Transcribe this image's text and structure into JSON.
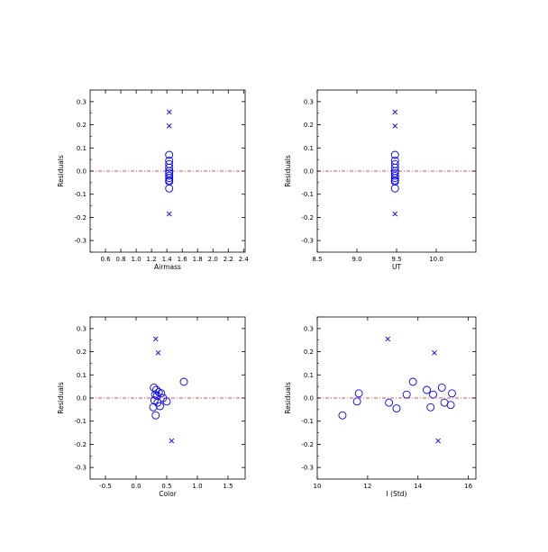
{
  "colors": {
    "points": "#0000ff",
    "zero_line": "#ff0000",
    "axes": "#000000"
  },
  "chart_data": [
    {
      "type": "scatter",
      "xlabel": "Airmass",
      "ylabel": "Residuals",
      "xlim": [
        0.4,
        2.42
      ],
      "ylim": [
        -0.35,
        0.35
      ],
      "xticks": [
        "0.6",
        "0.8",
        "1.0",
        "1.2",
        "1.4",
        "1.6",
        "1.8",
        "2.0",
        "2.2",
        "2.4"
      ],
      "yticks": [
        "-0.3",
        "-0.2",
        "-0.1",
        "0.0",
        "0.1",
        "0.2",
        "0.3"
      ],
      "zero_line": 0.0,
      "series": [
        {
          "marker": "x",
          "points": [
            [
              1.43,
              0.255
            ],
            [
              1.43,
              0.195
            ],
            [
              1.43,
              -0.185
            ]
          ]
        },
        {
          "marker": "o",
          "points": [
            [
              1.43,
              0.07
            ],
            [
              1.43,
              0.045
            ],
            [
              1.43,
              0.03
            ],
            [
              1.43,
              0.015
            ],
            [
              1.43,
              0.0
            ],
            [
              1.43,
              -0.01
            ],
            [
              1.43,
              -0.02
            ],
            [
              1.43,
              -0.03
            ],
            [
              1.43,
              -0.04
            ],
            [
              1.43,
              -0.045
            ],
            [
              1.43,
              -0.075
            ]
          ]
        }
      ]
    },
    {
      "type": "scatter",
      "xlabel": "UT",
      "ylabel": "Residuals",
      "xlim": [
        8.5,
        10.5
      ],
      "ylim": [
        -0.35,
        0.35
      ],
      "xticks": [
        "8.5",
        "9.0",
        "9.5",
        "10.0"
      ],
      "yticks": [
        "-0.3",
        "-0.2",
        "-0.1",
        "0.0",
        "0.1",
        "0.2",
        "0.3"
      ],
      "zero_line": 0.0,
      "series": [
        {
          "marker": "x",
          "points": [
            [
              9.48,
              0.255
            ],
            [
              9.48,
              0.195
            ],
            [
              9.48,
              -0.185
            ]
          ]
        },
        {
          "marker": "o",
          "points": [
            [
              9.48,
              0.07
            ],
            [
              9.48,
              0.045
            ],
            [
              9.48,
              0.03
            ],
            [
              9.48,
              0.015
            ],
            [
              9.48,
              0.0
            ],
            [
              9.48,
              -0.01
            ],
            [
              9.48,
              -0.02
            ],
            [
              9.48,
              -0.03
            ],
            [
              9.48,
              -0.04
            ],
            [
              9.48,
              -0.045
            ],
            [
              9.48,
              -0.075
            ]
          ]
        }
      ]
    },
    {
      "type": "scatter",
      "xlabel": "Color",
      "ylabel": "Residuals",
      "xlim": [
        -0.75,
        1.78
      ],
      "ylim": [
        -0.35,
        0.35
      ],
      "xticks": [
        "-0.5",
        "0.0",
        "0.5",
        "1.0",
        "1.5"
      ],
      "yticks": [
        "-0.3",
        "-0.2",
        "-0.1",
        "0.0",
        "0.1",
        "0.2",
        "0.3"
      ],
      "zero_line": 0.0,
      "series": [
        {
          "marker": "x",
          "points": [
            [
              0.32,
              0.255
            ],
            [
              0.36,
              0.195
            ],
            [
              0.58,
              -0.185
            ]
          ]
        },
        {
          "marker": "o",
          "points": [
            [
              0.29,
              0.045
            ],
            [
              0.33,
              0.035
            ],
            [
              0.37,
              0.025
            ],
            [
              0.41,
              0.02
            ],
            [
              0.31,
              0.015
            ],
            [
              0.34,
              0.01
            ],
            [
              0.3,
              -0.01
            ],
            [
              0.35,
              -0.02
            ],
            [
              0.5,
              -0.015
            ],
            [
              0.28,
              -0.04
            ],
            [
              0.39,
              -0.035
            ],
            [
              0.32,
              -0.075
            ],
            [
              0.78,
              0.07
            ],
            [
              0.44,
              0.0
            ]
          ]
        }
      ]
    },
    {
      "type": "scatter",
      "xlabel": "I (Std)",
      "ylabel": "Residuals",
      "xlim": [
        10,
        16.3
      ],
      "ylim": [
        -0.35,
        0.35
      ],
      "xticks": [
        "10",
        "12",
        "14",
        "16"
      ],
      "yticks": [
        "-0.3",
        "-0.2",
        "-0.1",
        "0.0",
        "0.1",
        "0.2",
        "0.3"
      ],
      "zero_line": 0.0,
      "series": [
        {
          "marker": "x",
          "points": [
            [
              12.8,
              0.255
            ],
            [
              14.65,
              0.195
            ],
            [
              14.8,
              -0.185
            ]
          ]
        },
        {
          "marker": "o",
          "points": [
            [
              11.0,
              -0.075
            ],
            [
              11.58,
              -0.015
            ],
            [
              11.65,
              0.02
            ],
            [
              12.85,
              -0.02
            ],
            [
              13.15,
              -0.045
            ],
            [
              13.55,
              0.015
            ],
            [
              13.8,
              0.07
            ],
            [
              14.35,
              0.035
            ],
            [
              14.5,
              -0.04
            ],
            [
              14.6,
              0.015
            ],
            [
              14.95,
              0.045
            ],
            [
              15.05,
              -0.02
            ],
            [
              15.35,
              0.02
            ],
            [
              15.3,
              -0.03
            ]
          ]
        }
      ]
    }
  ]
}
